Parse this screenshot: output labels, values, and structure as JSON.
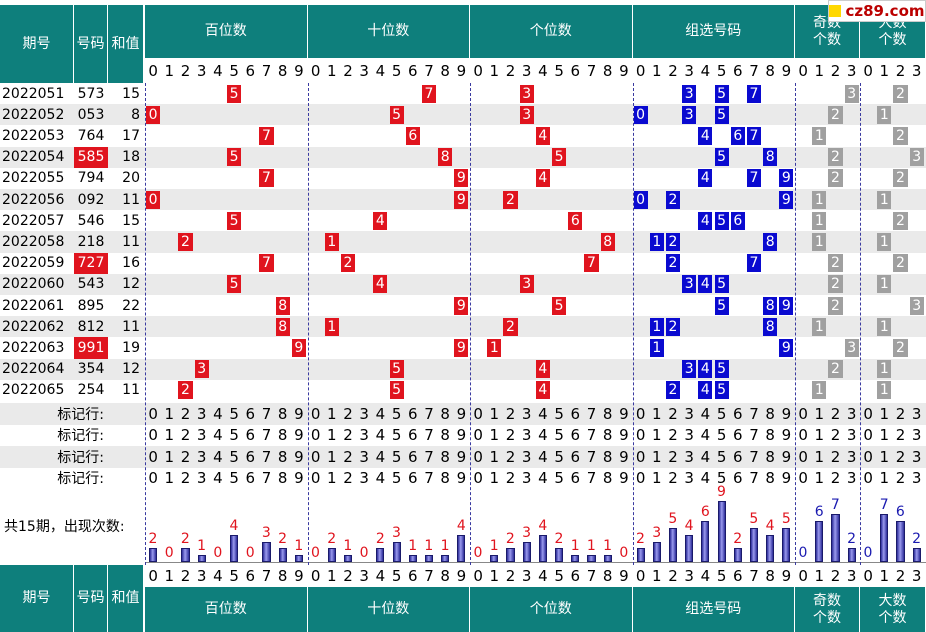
{
  "site_logo": "cz89.com",
  "headers": {
    "period": "期号",
    "number": "号码",
    "sum": "和值",
    "hundreds": "百位数",
    "tens": "十位数",
    "units": "个位数",
    "group": "组选号码",
    "odd_top": "奇数",
    "odd_bottom": "个数",
    "big_top": "大数",
    "big_bottom": "个数"
  },
  "digit_labels_10": [
    "0",
    "1",
    "2",
    "3",
    "4",
    "5",
    "6",
    "7",
    "8",
    "9"
  ],
  "digit_labels_4": [
    "0",
    "1",
    "2",
    "3"
  ],
  "marker_label": "标记行:",
  "stat_label": "共15期，出现次数:",
  "colors": {
    "header_bg": "#0e7f7c",
    "red_ball": "#e0141e",
    "blue_ball": "#0a0ad0",
    "gray_ball": "#a0a0a0",
    "row_stripe": "#eaeaea",
    "red_count": "#e0141e",
    "blue_count": "#1a1ab0"
  },
  "rows": [
    {
      "period": "2022051",
      "number": "573",
      "sum": "15",
      "h": 5,
      "t": 7,
      "u": 3,
      "group": [
        3,
        5,
        7
      ],
      "odd": 3,
      "big": 2,
      "highlight": false
    },
    {
      "period": "2022052",
      "number": "053",
      "sum": "8",
      "h": 0,
      "t": 5,
      "u": 3,
      "group": [
        0,
        3,
        5
      ],
      "odd": 2,
      "big": 1,
      "highlight": false
    },
    {
      "period": "2022053",
      "number": "764",
      "sum": "17",
      "h": 7,
      "t": 6,
      "u": 4,
      "group": [
        4,
        6,
        7
      ],
      "odd": 1,
      "big": 2,
      "highlight": false
    },
    {
      "period": "2022054",
      "number": "585",
      "sum": "18",
      "h": 5,
      "t": 8,
      "u": 5,
      "group": [
        5,
        8
      ],
      "odd": 2,
      "big": 3,
      "highlight": true
    },
    {
      "period": "2022055",
      "number": "794",
      "sum": "20",
      "h": 7,
      "t": 9,
      "u": 4,
      "group": [
        4,
        7,
        9
      ],
      "odd": 2,
      "big": 2,
      "highlight": false
    },
    {
      "period": "2022056",
      "number": "092",
      "sum": "11",
      "h": 0,
      "t": 9,
      "u": 2,
      "group": [
        0,
        2,
        9
      ],
      "odd": 1,
      "big": 1,
      "highlight": false
    },
    {
      "period": "2022057",
      "number": "546",
      "sum": "15",
      "h": 5,
      "t": 4,
      "u": 6,
      "group": [
        4,
        5,
        6
      ],
      "odd": 1,
      "big": 2,
      "highlight": false
    },
    {
      "period": "2022058",
      "number": "218",
      "sum": "11",
      "h": 2,
      "t": 1,
      "u": 8,
      "group": [
        1,
        2,
        8
      ],
      "odd": 1,
      "big": 1,
      "highlight": false
    },
    {
      "period": "2022059",
      "number": "727",
      "sum": "16",
      "h": 7,
      "t": 2,
      "u": 7,
      "group": [
        2,
        7
      ],
      "odd": 2,
      "big": 2,
      "highlight": true
    },
    {
      "period": "2022060",
      "number": "543",
      "sum": "12",
      "h": 5,
      "t": 4,
      "u": 3,
      "group": [
        3,
        4,
        5
      ],
      "odd": 2,
      "big": 1,
      "highlight": false
    },
    {
      "period": "2022061",
      "number": "895",
      "sum": "22",
      "h": 8,
      "t": 9,
      "u": 5,
      "group": [
        5,
        8,
        9
      ],
      "odd": 2,
      "big": 3,
      "highlight": false
    },
    {
      "period": "2022062",
      "number": "812",
      "sum": "11",
      "h": 8,
      "t": 1,
      "u": 2,
      "group": [
        1,
        2,
        8
      ],
      "odd": 1,
      "big": 1,
      "highlight": false
    },
    {
      "period": "2022063",
      "number": "991",
      "sum": "19",
      "h": 9,
      "t": 9,
      "u": 1,
      "group": [
        1,
        9
      ],
      "odd": 3,
      "big": 2,
      "highlight": true
    },
    {
      "period": "2022064",
      "number": "354",
      "sum": "12",
      "h": 3,
      "t": 5,
      "u": 4,
      "group": [
        3,
        4,
        5
      ],
      "odd": 2,
      "big": 1,
      "highlight": false
    },
    {
      "period": "2022065",
      "number": "254",
      "sum": "11",
      "h": 2,
      "t": 5,
      "u": 4,
      "group": [
        2,
        4,
        5
      ],
      "odd": 1,
      "big": 1,
      "highlight": false
    }
  ],
  "chart_data": {
    "type": "bar",
    "title": "共15期，出现次数:",
    "categories": [
      "0",
      "1",
      "2",
      "3",
      "4",
      "5",
      "6",
      "7",
      "8",
      "9"
    ],
    "groups": [
      {
        "name": "百位数",
        "values": [
          2,
          0,
          2,
          1,
          0,
          4,
          0,
          3,
          2,
          1
        ]
      },
      {
        "name": "十位数",
        "values": [
          0,
          2,
          1,
          0,
          2,
          3,
          1,
          1,
          1,
          4
        ]
      },
      {
        "name": "个位数",
        "values": [
          0,
          1,
          2,
          3,
          4,
          2,
          1,
          1,
          1,
          0
        ]
      },
      {
        "name": "组选号码",
        "values": [
          2,
          3,
          5,
          4,
          6,
          9,
          2,
          5,
          4,
          5
        ]
      },
      {
        "name": "奇数个数",
        "categories": [
          "0",
          "1",
          "2",
          "3"
        ],
        "values": [
          0,
          6,
          7,
          2
        ]
      },
      {
        "name": "大数个数",
        "categories": [
          "0",
          "1",
          "2",
          "3"
        ],
        "values": [
          0,
          7,
          6,
          2
        ]
      }
    ]
  }
}
